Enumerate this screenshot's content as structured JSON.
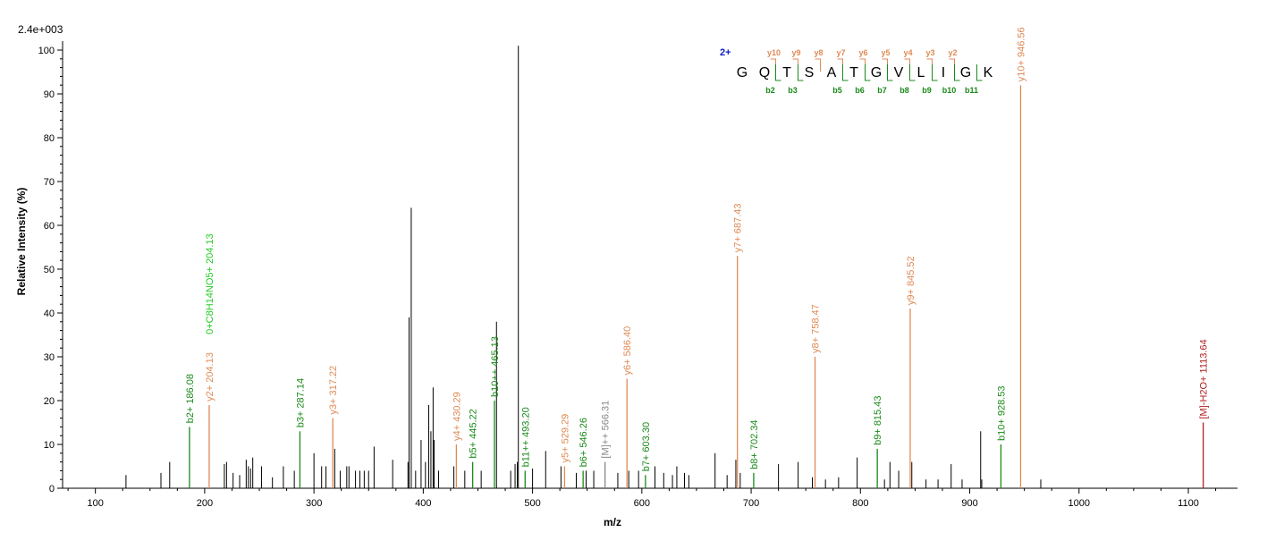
{
  "chart_data": {
    "type": "bar",
    "title": "",
    "xlabel": "m/z",
    "ylabel": "Relative   Intensity (%)",
    "max_intensity_label": "2.4e+003",
    "xlim": [
      70,
      1145
    ],
    "ylim": [
      0,
      100
    ],
    "x_ticks": [
      100,
      200,
      300,
      400,
      500,
      600,
      700,
      800,
      900,
      1000,
      1100
    ],
    "x_tick_labels": [
      "100",
      "200",
      "300",
      "400",
      "500",
      "600",
      "700",
      "800",
      "900",
      "1000",
      "1100"
    ],
    "y_ticks": [
      0,
      10,
      20,
      30,
      40,
      50,
      60,
      70,
      80,
      90,
      100
    ],
    "y_tick_labels": [
      "0",
      "10",
      "20",
      "30",
      "40",
      "50",
      "60",
      "70",
      "80",
      "90",
      "100"
    ],
    "colors": {
      "unmatched": "#000000",
      "b_ion": "#1a8a1a",
      "y_ion": "#e08a55",
      "precursor": "#888888",
      "loss": "#b02020",
      "neutral": "#22cc22",
      "charge": "#1020c0"
    },
    "peptide": {
      "charge": "2+",
      "residues": [
        "G",
        "Q",
        "T",
        "S",
        "A",
        "T",
        "G",
        "V",
        "L",
        "I",
        "G",
        "K"
      ],
      "y_labels": [
        "y10",
        "y9",
        "y8",
        "y7",
        "y6",
        "y5",
        "y4",
        "y3",
        "y2"
      ],
      "b_labels": [
        "b2",
        "b3",
        "b5",
        "b6",
        "b7",
        "b8",
        "b9",
        "b10",
        "b11"
      ]
    },
    "annotated_peaks": [
      {
        "mz": 186.08,
        "intensity": 14,
        "label": "b2+ 186.08",
        "type": "b_ion"
      },
      {
        "mz": 204.13,
        "intensity": 19,
        "label": "y2+ 204.13",
        "label2": "0+C8H14NO5+ 204.13",
        "type": "y_ion"
      },
      {
        "mz": 287.14,
        "intensity": 13,
        "label": "b3+ 287.14",
        "type": "b_ion"
      },
      {
        "mz": 317.22,
        "intensity": 16,
        "label": "y3+ 317.22",
        "type": "y_ion"
      },
      {
        "mz": 430.29,
        "intensity": 10,
        "label": "y4+ 430.29",
        "type": "y_ion"
      },
      {
        "mz": 445.22,
        "intensity": 6,
        "label": "b5+ 445.22",
        "type": "b_ion"
      },
      {
        "mz": 465.13,
        "intensity": 20,
        "label": "b10++ 465.13",
        "type": "b_ion"
      },
      {
        "mz": 493.2,
        "intensity": 4,
        "label": "b11++ 493.20",
        "type": "b_ion"
      },
      {
        "mz": 529.29,
        "intensity": 5,
        "label": "y5+ 529.29",
        "type": "y_ion"
      },
      {
        "mz": 546.26,
        "intensity": 4,
        "label": "b6+ 546.26",
        "type": "b_ion"
      },
      {
        "mz": 566.31,
        "intensity": 6,
        "label": "[M]++ 566.31",
        "type": "precursor"
      },
      {
        "mz": 586.4,
        "intensity": 25,
        "label": "y6+ 586.40",
        "type": "y_ion"
      },
      {
        "mz": 603.3,
        "intensity": 3,
        "label": "b7+ 603.30",
        "type": "b_ion"
      },
      {
        "mz": 687.43,
        "intensity": 53,
        "label": "y7+ 687.43",
        "type": "y_ion"
      },
      {
        "mz": 702.34,
        "intensity": 3.5,
        "label": "b8+ 702.34",
        "type": "b_ion"
      },
      {
        "mz": 758.47,
        "intensity": 30,
        "label": "y8+ 758.47",
        "type": "y_ion"
      },
      {
        "mz": 815.43,
        "intensity": 9,
        "label": "b9+ 815.43",
        "type": "b_ion"
      },
      {
        "mz": 845.52,
        "intensity": 41,
        "label": "y9+ 845.52",
        "type": "y_ion"
      },
      {
        "mz": 928.53,
        "intensity": 10,
        "label": "b10+ 928.53",
        "type": "b_ion"
      },
      {
        "mz": 946.56,
        "intensity": 92,
        "label": "y10+ 946.56",
        "type": "y_ion"
      },
      {
        "mz": 1113.64,
        "intensity": 15,
        "label": "[M]-H2O+ 1113.64",
        "type": "loss"
      }
    ],
    "unannotated_peaks": [
      [
        128,
        3
      ],
      [
        160,
        3.5
      ],
      [
        168,
        6
      ],
      [
        218,
        5.5
      ],
      [
        220,
        6
      ],
      [
        226,
        3.5
      ],
      [
        232,
        3
      ],
      [
        238,
        6.5
      ],
      [
        240,
        5
      ],
      [
        242,
        4.5
      ],
      [
        244,
        7
      ],
      [
        252,
        5
      ],
      [
        262,
        2.5
      ],
      [
        272,
        5
      ],
      [
        282,
        4
      ],
      [
        300,
        8
      ],
      [
        307,
        5
      ],
      [
        311,
        5
      ],
      [
        319,
        9
      ],
      [
        324,
        4
      ],
      [
        330,
        5
      ],
      [
        332,
        5
      ],
      [
        338,
        4
      ],
      [
        342,
        4
      ],
      [
        346,
        4
      ],
      [
        350,
        4
      ],
      [
        355,
        9.5
      ],
      [
        372,
        6.5
      ],
      [
        386,
        6
      ],
      [
        387,
        39
      ],
      [
        389,
        64
      ],
      [
        393,
        4
      ],
      [
        398,
        11
      ],
      [
        402,
        6
      ],
      [
        405,
        19
      ],
      [
        407,
        13
      ],
      [
        409,
        23
      ],
      [
        410,
        11
      ],
      [
        414,
        4
      ],
      [
        428,
        5
      ],
      [
        438,
        4
      ],
      [
        453,
        4
      ],
      [
        467,
        38
      ],
      [
        480,
        4
      ],
      [
        484,
        5.5
      ],
      [
        486,
        6
      ],
      [
        487,
        101
      ],
      [
        500,
        4.5
      ],
      [
        512,
        8.5
      ],
      [
        526,
        5
      ],
      [
        540,
        3.5
      ],
      [
        549,
        4
      ],
      [
        556,
        4
      ],
      [
        578,
        3.5
      ],
      [
        588,
        4
      ],
      [
        597,
        4
      ],
      [
        612,
        5
      ],
      [
        620,
        3.5
      ],
      [
        628,
        3
      ],
      [
        632,
        5
      ],
      [
        639,
        3.5
      ],
      [
        643,
        3
      ],
      [
        667,
        8
      ],
      [
        678,
        3
      ],
      [
        686,
        6.5
      ],
      [
        690,
        3.5
      ],
      [
        725,
        5.5
      ],
      [
        743,
        6
      ],
      [
        756,
        2.5
      ],
      [
        768,
        2
      ],
      [
        780,
        2.5
      ],
      [
        797,
        7
      ],
      [
        822,
        2
      ],
      [
        827,
        6
      ],
      [
        835,
        4
      ],
      [
        847,
        6
      ],
      [
        860,
        2
      ],
      [
        871,
        2
      ],
      [
        883,
        5.5
      ],
      [
        893,
        2
      ],
      [
        910,
        13
      ],
      [
        911,
        2
      ],
      [
        965,
        2
      ]
    ]
  }
}
